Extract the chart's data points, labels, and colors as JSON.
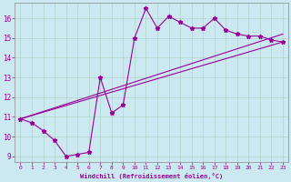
{
  "background_color": "#cce8f0",
  "grid_color": "#b0d4c8",
  "line_color": "#990099",
  "xlabel": "Windchill (Refroidissement éolien,°C)",
  "xlim": [
    -0.5,
    23.5
  ],
  "ylim": [
    8.7,
    16.8
  ],
  "yticks": [
    9,
    10,
    11,
    12,
    13,
    14,
    15,
    16
  ],
  "xticks": [
    0,
    1,
    2,
    3,
    4,
    5,
    6,
    7,
    8,
    9,
    10,
    11,
    12,
    13,
    14,
    15,
    16,
    17,
    18,
    19,
    20,
    21,
    22,
    23
  ],
  "series1_x": [
    0,
    1,
    2,
    3,
    4,
    5,
    6,
    7,
    8,
    9,
    10,
    11,
    12,
    13,
    14,
    15,
    16,
    17,
    18,
    19,
    20,
    21,
    22,
    23
  ],
  "series1_y": [
    10.9,
    10.7,
    10.3,
    9.8,
    9.0,
    9.1,
    9.2,
    13.0,
    11.2,
    11.6,
    15.0,
    16.5,
    15.5,
    16.1,
    15.8,
    15.5,
    15.5,
    16.0,
    15.4,
    15.2,
    15.1,
    15.1,
    14.9,
    14.8
  ],
  "line2_x0": 0,
  "line2_y0": 10.9,
  "line2_x1": 23,
  "line2_y1": 15.2,
  "line3_x0": 0,
  "line3_y0": 10.9,
  "line3_x1": 23,
  "line3_y1": 14.8
}
